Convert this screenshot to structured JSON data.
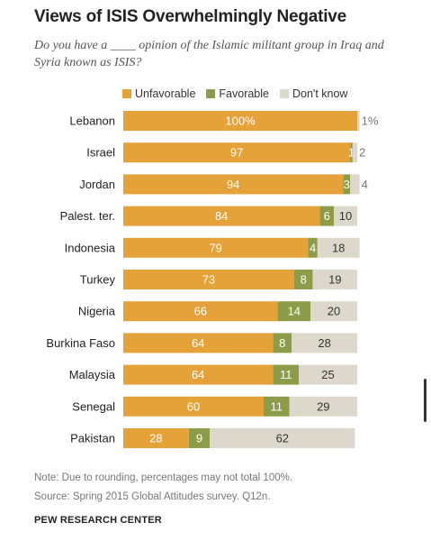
{
  "header": {
    "title": "Views of ISIS Overwhelmingly Negative",
    "subtitle": "Do you have a ____ opinion of the Islamic militant group in Iraq and Syria known as ISIS?"
  },
  "colors": {
    "unfavorable": "#e5a239",
    "favorable": "#8c9c48",
    "dont_know": "#dcd9cc"
  },
  "chart_data": {
    "type": "bar",
    "orientation": "horizontal",
    "stacked": true,
    "categories": [
      "Lebanon",
      "Israel",
      "Jordan",
      "Palest. ter.",
      "Indonesia",
      "Turkey",
      "Nigeria",
      "Burkina Faso",
      "Malaysia",
      "Senegal",
      "Pakistan"
    ],
    "series": [
      {
        "name": "Unfavorable",
        "values": [
          100,
          97,
          94,
          84,
          79,
          73,
          66,
          64,
          64,
          60,
          28
        ]
      },
      {
        "name": "Favorable",
        "values": [
          0,
          1,
          3,
          6,
          4,
          8,
          14,
          8,
          11,
          11,
          9
        ]
      },
      {
        "name": "Don't know",
        "values": [
          1,
          2,
          4,
          10,
          18,
          19,
          20,
          28,
          25,
          29,
          62
        ]
      }
    ],
    "value_labels": {
      "unfavorable": [
        "100%",
        "97",
        "94",
        "84",
        "79",
        "73",
        "66",
        "64",
        "64",
        "60",
        "28"
      ],
      "favorable": [
        "",
        "1",
        "3",
        "6",
        "4",
        "8",
        "14",
        "8",
        "11",
        "11",
        "9"
      ],
      "dont_know": [
        "1%",
        "2",
        "4",
        "10",
        "18",
        "19",
        "20",
        "28",
        "25",
        "29",
        "62"
      ]
    },
    "legend_position": "top",
    "grid": false,
    "xlim": [
      0,
      100
    ]
  },
  "footer": {
    "note": "Note: Due to rounding, percentages may not total 100%.",
    "source": "Source: Spring 2015 Global Attitudes survey. Q12n.",
    "credit": "PEW RESEARCH CENTER"
  }
}
